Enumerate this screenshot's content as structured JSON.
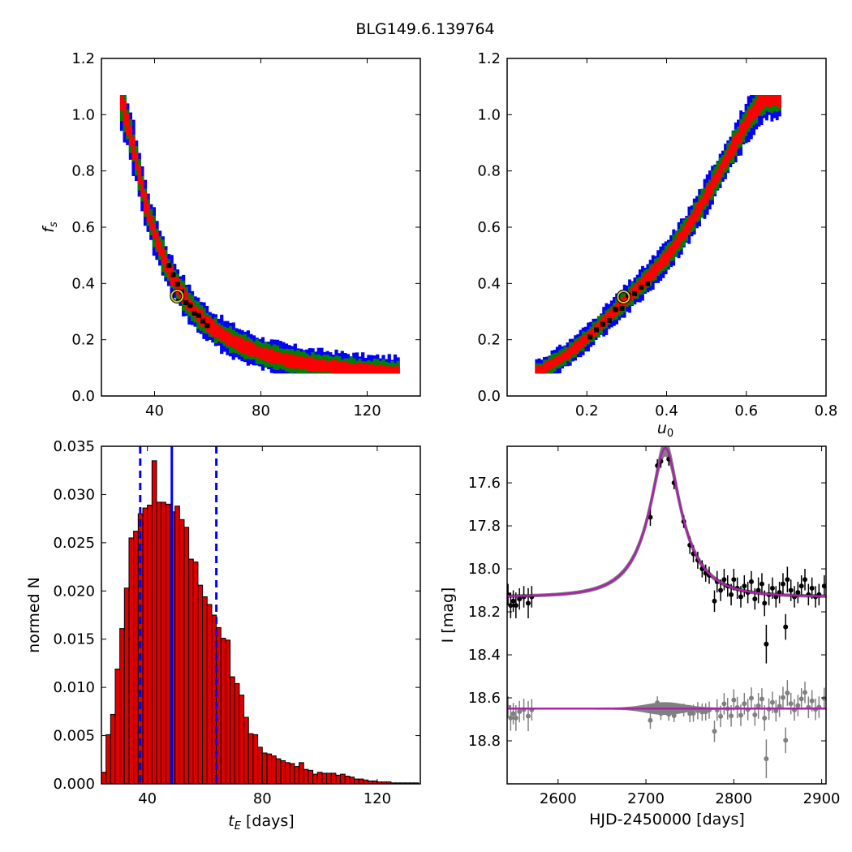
{
  "figure_title": "BLG149.6.139764",
  "colors": {
    "blue": "#0000ff",
    "green": "#008000",
    "red": "#ff0000",
    "black": "#000000",
    "marker_ring": "#c8c832",
    "model": "#aa22aa",
    "band": "#808080",
    "resid_points": "#808080",
    "hist_fill": "#dd0000"
  },
  "chart_data": [
    {
      "type": "heatmap",
      "id": "fs_vs_tE",
      "xlabel": "",
      "ylabel": "f_s",
      "xlim": [
        20,
        140
      ],
      "ylim": [
        0.0,
        1.2
      ],
      "xticks": [
        "40",
        "80",
        "120"
      ],
      "yticks": [
        "0.0",
        "0.2",
        "0.4",
        "0.6",
        "0.8",
        "1.0",
        "1.2"
      ],
      "levels": [
        "blue",
        "green",
        "red",
        "black"
      ],
      "band_centerline": {
        "x": [
          27,
          32,
          36,
          40,
          44,
          48,
          52,
          56,
          60,
          66,
          72,
          80,
          90,
          100,
          110,
          120,
          130
        ],
        "y": [
          1.05,
          0.86,
          0.68,
          0.56,
          0.46,
          0.39,
          0.33,
          0.285,
          0.25,
          0.21,
          0.18,
          0.15,
          0.125,
          0.11,
          0.1,
          0.09,
          0.085
        ]
      },
      "best_fit": {
        "x": 48.5,
        "y": 0.355
      }
    },
    {
      "type": "heatmap",
      "id": "fs_vs_u0",
      "xlabel": "u_0",
      "ylabel": "",
      "xlim": [
        0.0,
        0.8
      ],
      "ylim": [
        0.0,
        1.2
      ],
      "xticks": [
        "0.2",
        "0.4",
        "0.6",
        "0.8"
      ],
      "yticks": [
        "0.0",
        "0.2",
        "0.4",
        "0.6",
        "0.8",
        "1.0",
        "1.2"
      ],
      "levels": [
        "blue",
        "green",
        "red",
        "black"
      ],
      "band_centerline": {
        "x": [
          0.08,
          0.15,
          0.2,
          0.25,
          0.3,
          0.35,
          0.4,
          0.45,
          0.5,
          0.55,
          0.6,
          0.64
        ],
        "y": [
          0.09,
          0.15,
          0.21,
          0.28,
          0.35,
          0.42,
          0.5,
          0.6,
          0.72,
          0.85,
          0.98,
          1.06
        ]
      },
      "best_fit": {
        "x": 0.292,
        "y": 0.352
      }
    },
    {
      "type": "bar",
      "id": "tE_histogram",
      "xlabel": "t_E [days]",
      "ylabel": "normed N",
      "xlim": [
        24,
        135
      ],
      "ylim": [
        0,
        0.035
      ],
      "xticks": [
        "40",
        "80",
        "120"
      ],
      "yticks": [
        "0.000",
        "0.005",
        "0.010",
        "0.015",
        "0.020",
        "0.025",
        "0.030",
        "0.035"
      ],
      "bin_start": 24,
      "bin_width": 1.6,
      "values": [
        0.0012,
        0.0051,
        0.0072,
        0.0119,
        0.0161,
        0.0203,
        0.0255,
        0.0262,
        0.028,
        0.0286,
        0.0289,
        0.0335,
        0.0292,
        0.0292,
        0.029,
        0.0282,
        0.0288,
        0.0274,
        0.0266,
        0.0233,
        0.023,
        0.0206,
        0.0194,
        0.0186,
        0.0175,
        0.0162,
        0.0151,
        0.0149,
        0.0111,
        0.0104,
        0.0092,
        0.0069,
        0.0052,
        0.0051,
        0.0038,
        0.0032,
        0.0031,
        0.0029,
        0.0026,
        0.0024,
        0.0022,
        0.0021,
        0.0018,
        0.0022,
        0.0015,
        0.0014,
        0.001,
        0.0012,
        0.0011,
        0.0011,
        0.0011,
        0.0009,
        0.001,
        0.0008,
        0.0007,
        0.0005,
        0.0005,
        0.0004,
        0.0003,
        0.0003,
        0.0002,
        0.0002,
        0.0002,
        0.0001,
        0.0001,
        0.0001,
        0.0001,
        0.0001,
        0.0001
      ],
      "median": 48.5,
      "interval": [
        37.5,
        64.0
      ]
    },
    {
      "type": "line",
      "id": "light_curve",
      "xlabel": "HJD-2450000 [days]",
      "ylabel": "I [mag]",
      "xlim": [
        2542,
        2905
      ],
      "ylim": [
        19.0,
        17.43
      ],
      "xticks": [
        "2600",
        "2700",
        "2800",
        "2900"
      ],
      "yticks": [
        "17.6",
        "17.8",
        "18.0",
        "18.2",
        "18.4",
        "18.6",
        "18.8"
      ],
      "model": {
        "t0": 2722,
        "tE": 48.5,
        "u0": 0.292,
        "fs": 0.352,
        "baseline": 18.13
      },
      "residual_offset": 18.65,
      "data": [
        {
          "t": 2543,
          "m": 18.12,
          "e": 0.05
        },
        {
          "t": 2546,
          "m": 18.17,
          "e": 0.06
        },
        {
          "t": 2549,
          "m": 18.15,
          "e": 0.05
        },
        {
          "t": 2552,
          "m": 18.17,
          "e": 0.06
        },
        {
          "t": 2556,
          "m": 18.14,
          "e": 0.05
        },
        {
          "t": 2561,
          "m": 18.13,
          "e": 0.05
        },
        {
          "t": 2566,
          "m": 18.16,
          "e": 0.07
        },
        {
          "t": 2570,
          "m": 18.13,
          "e": 0.05
        },
        {
          "t": 2705,
          "m": 17.76,
          "e": 0.04
        },
        {
          "t": 2713,
          "m": 17.52,
          "e": 0.03
        },
        {
          "t": 2717,
          "m": 17.5,
          "e": 0.03
        },
        {
          "t": 2726,
          "m": 17.49,
          "e": 0.03
        },
        {
          "t": 2732,
          "m": 17.6,
          "e": 0.03
        },
        {
          "t": 2743,
          "m": 17.78,
          "e": 0.03
        },
        {
          "t": 2750,
          "m": 17.89,
          "e": 0.04
        },
        {
          "t": 2754,
          "m": 17.93,
          "e": 0.04
        },
        {
          "t": 2759,
          "m": 17.96,
          "e": 0.04
        },
        {
          "t": 2764,
          "m": 18.0,
          "e": 0.04
        },
        {
          "t": 2768,
          "m": 18.02,
          "e": 0.04
        },
        {
          "t": 2772,
          "m": 18.03,
          "e": 0.04
        },
        {
          "t": 2778,
          "m": 18.15,
          "e": 0.05
        },
        {
          "t": 2781,
          "m": 18.06,
          "e": 0.05
        },
        {
          "t": 2785,
          "m": 18.1,
          "e": 0.05
        },
        {
          "t": 2789,
          "m": 18.05,
          "e": 0.05
        },
        {
          "t": 2793,
          "m": 18.08,
          "e": 0.05
        },
        {
          "t": 2797,
          "m": 18.12,
          "e": 0.05
        },
        {
          "t": 2800,
          "m": 18.05,
          "e": 0.05
        },
        {
          "t": 2804,
          "m": 18.09,
          "e": 0.05
        },
        {
          "t": 2808,
          "m": 18.13,
          "e": 0.05
        },
        {
          "t": 2812,
          "m": 18.08,
          "e": 0.05
        },
        {
          "t": 2816,
          "m": 18.11,
          "e": 0.05
        },
        {
          "t": 2820,
          "m": 18.06,
          "e": 0.05
        },
        {
          "t": 2824,
          "m": 18.14,
          "e": 0.05
        },
        {
          "t": 2828,
          "m": 18.1,
          "e": 0.06
        },
        {
          "t": 2832,
          "m": 18.07,
          "e": 0.05
        },
        {
          "t": 2835,
          "m": 18.16,
          "e": 0.06
        },
        {
          "t": 2837,
          "m": 18.35,
          "e": 0.09
        },
        {
          "t": 2840,
          "m": 18.12,
          "e": 0.05
        },
        {
          "t": 2844,
          "m": 18.09,
          "e": 0.05
        },
        {
          "t": 2848,
          "m": 18.13,
          "e": 0.05
        },
        {
          "t": 2852,
          "m": 18.11,
          "e": 0.05
        },
        {
          "t": 2856,
          "m": 18.07,
          "e": 0.05
        },
        {
          "t": 2859,
          "m": 18.27,
          "e": 0.06
        },
        {
          "t": 2861,
          "m": 18.05,
          "e": 0.06
        },
        {
          "t": 2865,
          "m": 18.1,
          "e": 0.05
        },
        {
          "t": 2869,
          "m": 18.13,
          "e": 0.05
        },
        {
          "t": 2873,
          "m": 18.11,
          "e": 0.05
        },
        {
          "t": 2877,
          "m": 18.08,
          "e": 0.05
        },
        {
          "t": 2881,
          "m": 18.05,
          "e": 0.05
        },
        {
          "t": 2885,
          "m": 18.12,
          "e": 0.05
        },
        {
          "t": 2889,
          "m": 18.09,
          "e": 0.05
        },
        {
          "t": 2893,
          "m": 18.13,
          "e": 0.05
        },
        {
          "t": 2897,
          "m": 18.12,
          "e": 0.05
        },
        {
          "t": 2903,
          "m": 18.08,
          "e": 0.05
        }
      ]
    }
  ]
}
